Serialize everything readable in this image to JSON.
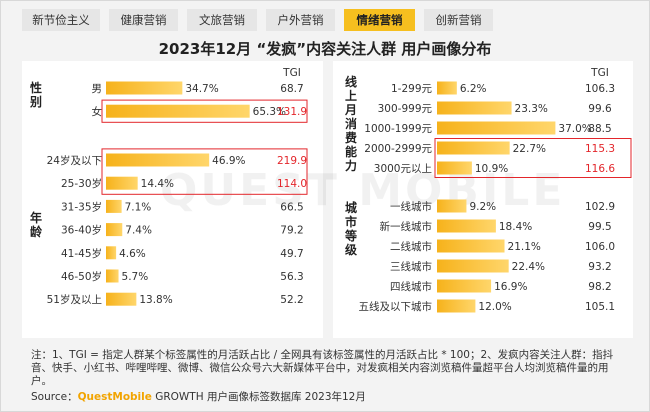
{
  "tabs": [
    {
      "label": "新节俭主义",
      "active": false
    },
    {
      "label": "健康营销",
      "active": false
    },
    {
      "label": "文旅营销",
      "active": false
    },
    {
      "label": "户外营销",
      "active": false
    },
    {
      "label": "情绪营销",
      "active": true
    },
    {
      "label": "创新营销",
      "active": false
    }
  ],
  "title": "2023年12月 “发疯”内容关注人群 用户画像分布",
  "colors": {
    "bar": "#f6b21b",
    "bar_light": "#ffd66b",
    "highlight": "#e3262b",
    "tab_active": "#f6bf1f"
  },
  "chart_data": [
    {
      "type": "bar",
      "orientation": "horizontal",
      "tgi_label": "TGI",
      "groups": [
        {
          "name": "性别",
          "categories": [
            "男",
            "女"
          ],
          "values": [
            34.7,
            65.3
          ],
          "value_labels": [
            "34.7%",
            "65.3%"
          ],
          "tgi": [
            "68.7",
            "131.9"
          ],
          "highlight": [
            false,
            true
          ]
        },
        {
          "name": "年龄",
          "categories": [
            "24岁及以下",
            "25-30岁",
            "31-35岁",
            "36-40岁",
            "41-45岁",
            "46-50岁",
            "51岁及以上"
          ],
          "values": [
            46.9,
            14.4,
            7.1,
            7.4,
            4.6,
            5.7,
            13.8
          ],
          "value_labels": [
            "46.9%",
            "14.4%",
            "7.1%",
            "7.4%",
            "4.6%",
            "5.7%",
            "13.8%"
          ],
          "tgi": [
            "219.9",
            "114.0",
            "66.5",
            "79.2",
            "49.7",
            "56.3",
            "52.2"
          ],
          "highlight": [
            true,
            true,
            false,
            false,
            false,
            false,
            false
          ]
        }
      ]
    },
    {
      "type": "bar",
      "orientation": "horizontal",
      "tgi_label": "TGI",
      "groups": [
        {
          "name": "线上月消费能力",
          "categories": [
            "1-299元",
            "300-999元",
            "1000-1999元",
            "2000-2999元",
            "3000元以上"
          ],
          "values": [
            6.2,
            23.3,
            37.0,
            22.7,
            10.9
          ],
          "value_labels": [
            "6.2%",
            "23.3%",
            "37.0%",
            "22.7%",
            "10.9%"
          ],
          "tgi": [
            "106.3",
            "99.6",
            "88.5",
            "115.3",
            "116.6"
          ],
          "highlight": [
            false,
            false,
            false,
            true,
            true
          ]
        },
        {
          "name": "城市等级",
          "categories": [
            "一线城市",
            "新一线城市",
            "二线城市",
            "三线城市",
            "四线城市",
            "五线及以下城市"
          ],
          "values": [
            9.2,
            18.4,
            21.1,
            22.4,
            16.9,
            12.0
          ],
          "value_labels": [
            "9.2%",
            "18.4%",
            "21.1%",
            "22.4%",
            "16.9%",
            "12.0%"
          ],
          "tgi": [
            "102.9",
            "99.5",
            "106.0",
            "93.2",
            "98.2",
            "105.1"
          ],
          "highlight": [
            false,
            false,
            false,
            false,
            false,
            false
          ]
        }
      ]
    }
  ],
  "note": "注：1、TGI = 指定人群某个标签属性的月活跃占比 / 全网具有该标签属性的月活跃占比 * 100；2、发疯内容关注人群：指抖音、快手、小红书、哔哩哔哩、微博、微信公众号六大新媒体平台中，对发疯相关内容浏览稿件量超平台人均浏览稿件量的用户。",
  "source": {
    "prefix": "Source：",
    "brand": "QuestMobile",
    "rest": " GROWTH 用户画像标签数据库 2023年12月"
  },
  "watermark": "QUEST MOBILE"
}
